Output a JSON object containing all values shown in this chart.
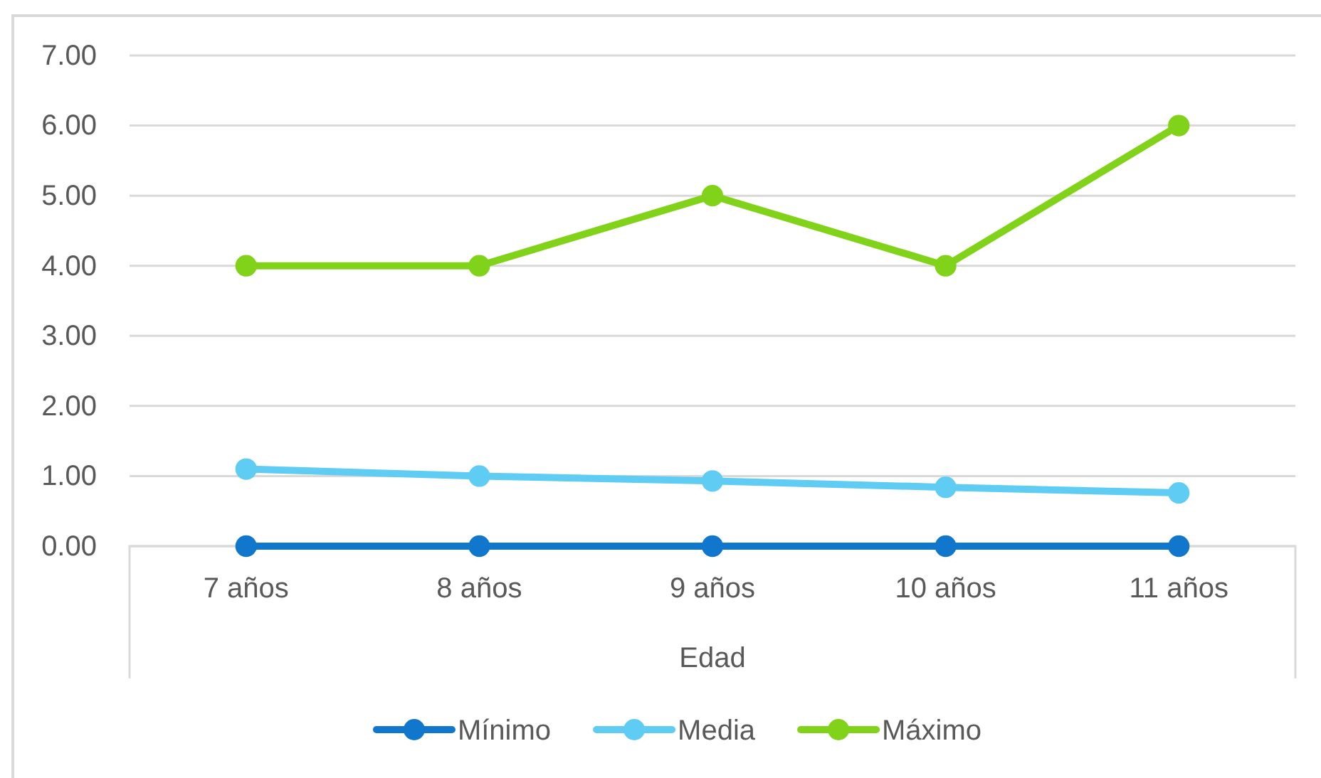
{
  "chart_data": {
    "type": "line",
    "categories": [
      "7 años",
      "8 años",
      "9 años",
      "10 años",
      "11 años"
    ],
    "xlabel": "Edad",
    "ylim": [
      0,
      7
    ],
    "yticks": [
      {
        "value": 0,
        "label": "0.00"
      },
      {
        "value": 1,
        "label": "1.00"
      },
      {
        "value": 2,
        "label": "2.00"
      },
      {
        "value": 3,
        "label": "3.00"
      },
      {
        "value": 4,
        "label": "4.00"
      },
      {
        "value": 5,
        "label": "5.00"
      },
      {
        "value": 6,
        "label": "6.00"
      },
      {
        "value": 7,
        "label": "7.00"
      }
    ],
    "grid": "y",
    "legend": "bottom",
    "marker": "circle",
    "line_style": "solid",
    "series": [
      {
        "name": "Mínimo",
        "color": "#1177cc",
        "values": [
          0,
          0,
          0,
          0,
          0
        ]
      },
      {
        "name": "Media",
        "color": "#5fcdf3",
        "values": [
          1.1,
          1.0,
          0.93,
          0.84,
          0.76
        ]
      },
      {
        "name": "Máximo",
        "color": "#80d318",
        "values": [
          4,
          4,
          5,
          4,
          6
        ]
      }
    ]
  }
}
